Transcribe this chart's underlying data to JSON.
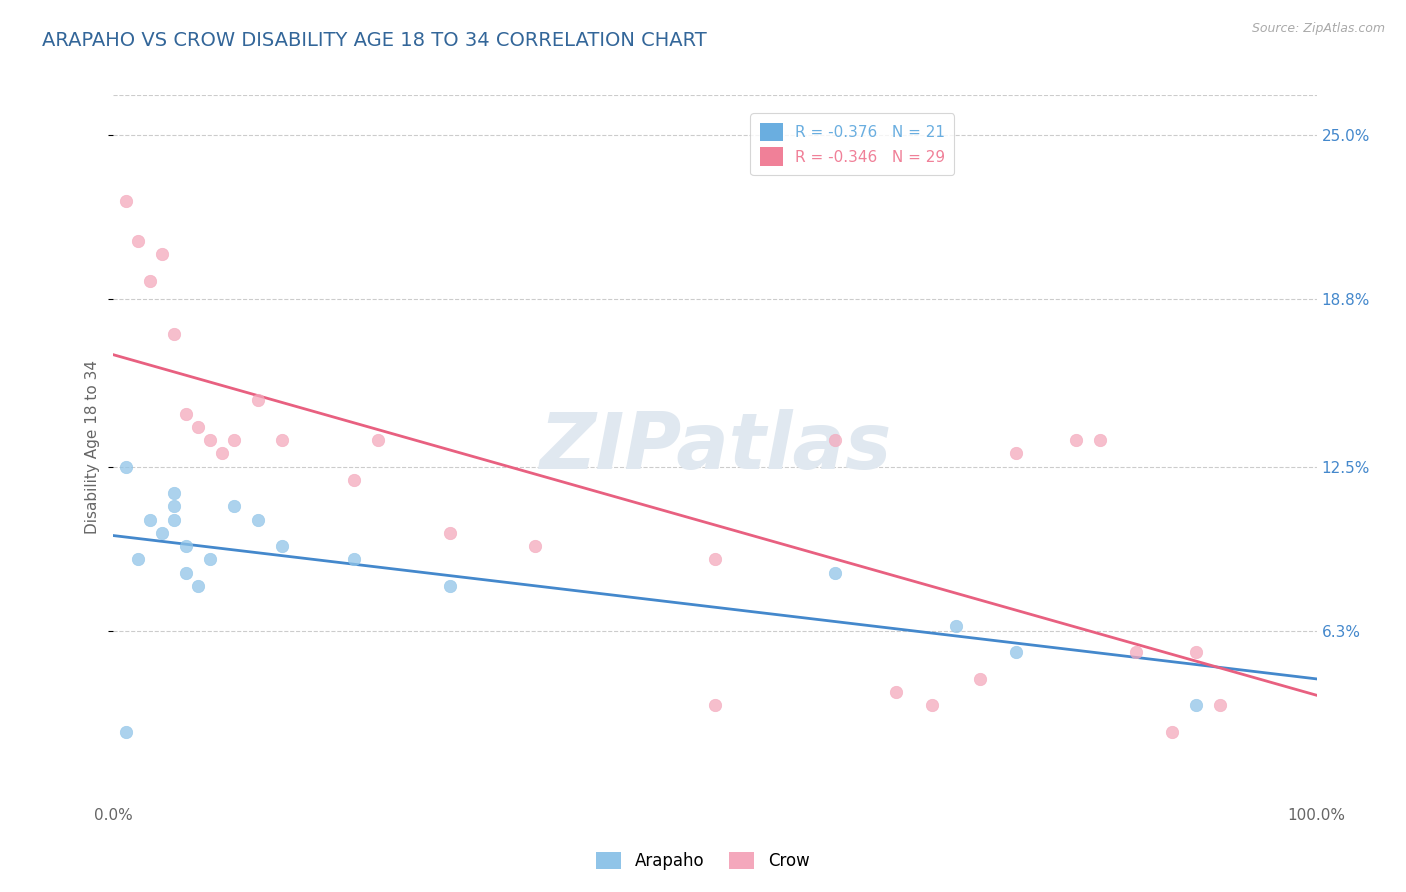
{
  "title": "ARAPAHO VS CROW DISABILITY AGE 18 TO 34 CORRELATION CHART",
  "source": "Source: ZipAtlas.com",
  "ylabel": "Disability Age 18 to 34",
  "xlim": [
    0,
    100
  ],
  "ylim": [
    0,
    26.5
  ],
  "ytick_labels": [
    "6.3%",
    "12.5%",
    "18.8%",
    "25.0%"
  ],
  "ytick_values": [
    6.3,
    12.5,
    18.8,
    25.0
  ],
  "xtick_labels": [
    "0.0%",
    "100.0%"
  ],
  "legend_entries": [
    {
      "label": "R = -0.376   N = 21",
      "color": "#6aaee0"
    },
    {
      "label": "R = -0.346   N = 29",
      "color": "#f08098"
    }
  ],
  "arapaho_x": [
    1,
    2,
    3,
    4,
    5,
    5,
    5,
    6,
    6,
    7,
    8,
    10,
    12,
    14,
    20,
    28,
    60,
    70,
    75,
    90,
    1
  ],
  "arapaho_y": [
    12.5,
    9.0,
    10.5,
    10.0,
    11.5,
    10.5,
    11.0,
    8.5,
    9.5,
    8.0,
    9.0,
    11.0,
    10.5,
    9.5,
    9.0,
    8.0,
    8.5,
    6.5,
    5.5,
    3.5,
    2.5
  ],
  "crow_x": [
    1,
    2,
    3,
    4,
    5,
    6,
    7,
    8,
    9,
    10,
    12,
    14,
    20,
    22,
    28,
    35,
    50,
    60,
    65,
    68,
    72,
    75,
    80,
    82,
    85,
    88,
    90,
    92,
    50
  ],
  "crow_y": [
    22.5,
    21.0,
    19.5,
    20.5,
    17.5,
    14.5,
    14.0,
    13.5,
    13.0,
    13.5,
    15.0,
    13.5,
    12.0,
    13.5,
    10.0,
    9.5,
    3.5,
    13.5,
    4.0,
    3.5,
    4.5,
    13.0,
    13.5,
    13.5,
    5.5,
    2.5,
    5.5,
    3.5,
    9.0
  ],
  "arapaho_color": "#90c4e8",
  "crow_color": "#f4a8bc",
  "arapaho_line_color": "#4488cc",
  "crow_line_color": "#e86080",
  "background_color": "#ffffff",
  "grid_color": "#cccccc",
  "title_color": "#336699",
  "title_fontsize": 14,
  "axis_label_color": "#666666",
  "watermark_color": "#e0e8f0"
}
